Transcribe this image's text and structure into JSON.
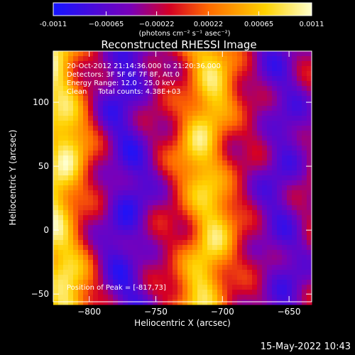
{
  "chart_data": {
    "type": "heatmap",
    "title": "Reconstructed RHESSI Image",
    "xlabel": "Heliocentric X (arcsec)",
    "ylabel": "Heliocentric Y (arcsec)",
    "xlim": [
      -827,
      -633
    ],
    "ylim": [
      -56,
      140
    ],
    "xticks": [
      -800,
      -750,
      -700,
      -650
    ],
    "xtick_labels": [
      "−800",
      "−750",
      "−700",
      "−650"
    ],
    "yticks": [
      -50,
      0,
      50,
      100
    ],
    "ytick_labels": [
      "−50",
      "0",
      "50",
      "100"
    ],
    "info_lines": [
      "20-Oct-2012 21:14:36.000 to 21:20:36.000",
      "Detectors: 3F 5F 6F 7F 8F, Att 0",
      "Energy Range: 12.0 - 25.0 keV",
      "Clean     Total counts: 4.38E+03"
    ],
    "peak_text": "Position of Peak = [-817,73]",
    "colorbar": {
      "ticks": [
        -0.0011,
        -0.00065,
        -0.00022,
        0.00022,
        0.00065,
        0.0011
      ],
      "tick_labels": [
        "-0.0011",
        "−0.00065",
        "−0.00022",
        "0.00022",
        "0.00065",
        "0.0011"
      ],
      "label": "(photons cm⁻² s⁻¹ asec⁻²)",
      "colors": [
        "#1515ff",
        "#7a00b8",
        "#d40025",
        "#ff6a00",
        "#ffd200",
        "#ffffcc"
      ]
    },
    "ridges": [
      {
        "x": -822,
        "strength": 0.95
      },
      {
        "x": -772,
        "strength": -0.55
      },
      {
        "x": -712,
        "strength": 0.85
      },
      {
        "x": -655,
        "strength": -0.45
      }
    ]
  },
  "footer_date": "15-May-2022 10:43"
}
